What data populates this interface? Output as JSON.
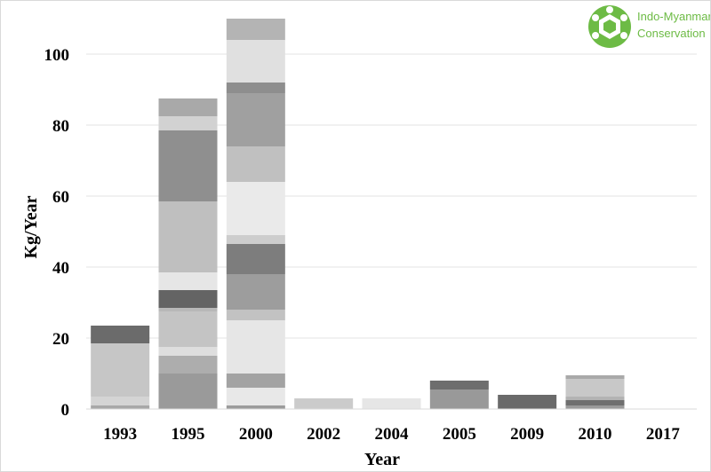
{
  "chart_data": {
    "type": "bar",
    "stacked": true,
    "xlabel": "Year",
    "ylabel": "Kg/Year",
    "ylim": [
      0,
      110
    ],
    "yticks": [
      0,
      20,
      40,
      60,
      80,
      100
    ],
    "grid": "horizontal",
    "legend": "none",
    "categories": [
      "1993",
      "1995",
      "2000",
      "2002",
      "2004",
      "2005",
      "2009",
      "2010",
      "2017"
    ],
    "stacks": [
      {
        "year": "1993",
        "segments": [
          {
            "value": 1,
            "color": "#a8a8a8"
          },
          {
            "value": 2.5,
            "color": "#d4d4d4"
          },
          {
            "value": 15,
            "color": "#c6c6c6"
          },
          {
            "value": 5,
            "color": "#6b6b6b"
          }
        ]
      },
      {
        "year": "1995",
        "segments": [
          {
            "value": 10,
            "color": "#9a9a9a"
          },
          {
            "value": 5,
            "color": "#adadad"
          },
          {
            "value": 2.5,
            "color": "#dedede"
          },
          {
            "value": 10,
            "color": "#c4c4c4"
          },
          {
            "value": 1,
            "color": "#b8b8b8"
          },
          {
            "value": 5,
            "color": "#646464"
          },
          {
            "value": 5,
            "color": "#e6e6e6"
          },
          {
            "value": 20,
            "color": "#bfbfbf"
          },
          {
            "value": 20,
            "color": "#8f8f8f"
          },
          {
            "value": 4,
            "color": "#d2d2d2"
          },
          {
            "value": 5,
            "color": "#a9a9a9"
          }
        ]
      },
      {
        "year": "2000",
        "segments": [
          {
            "value": 1,
            "color": "#9b9b9b"
          },
          {
            "value": 5,
            "color": "#e8e8e8"
          },
          {
            "value": 4,
            "color": "#a3a3a3"
          },
          {
            "value": 15,
            "color": "#e6e6e6"
          },
          {
            "value": 3,
            "color": "#c2c2c2"
          },
          {
            "value": 10,
            "color": "#9d9d9d"
          },
          {
            "value": 8.5,
            "color": "#7d7d7d"
          },
          {
            "value": 2.5,
            "color": "#cdcdcd"
          },
          {
            "value": 15,
            "color": "#eaeaea"
          },
          {
            "value": 10,
            "color": "#c0c0c0"
          },
          {
            "value": 15,
            "color": "#a0a0a0"
          },
          {
            "value": 3,
            "color": "#8e8e8e"
          },
          {
            "value": 12,
            "color": "#e0e0e0"
          },
          {
            "value": 6,
            "color": "#b4b4b4"
          }
        ]
      },
      {
        "year": "2002",
        "segments": [
          {
            "value": 3,
            "color": "#cbcbcb"
          }
        ]
      },
      {
        "year": "2004",
        "segments": [
          {
            "value": 3,
            "color": "#e6e6e6"
          }
        ]
      },
      {
        "year": "2005",
        "segments": [
          {
            "value": 5.5,
            "color": "#999999"
          },
          {
            "value": 2.5,
            "color": "#6e6e6e"
          }
        ]
      },
      {
        "year": "2009",
        "segments": [
          {
            "value": 4,
            "color": "#6a6a6a"
          }
        ]
      },
      {
        "year": "2010",
        "segments": [
          {
            "value": 1,
            "color": "#9a9a9a"
          },
          {
            "value": 1.5,
            "color": "#6f6f6f"
          },
          {
            "value": 1,
            "color": "#b3b3b3"
          },
          {
            "value": 5,
            "color": "#c8c8c8"
          },
          {
            "value": 1,
            "color": "#a9a9a9"
          }
        ]
      },
      {
        "year": "2017",
        "segments": []
      }
    ]
  },
  "logo": {
    "line1": "Indo-Myanmar",
    "line2": "Conservation",
    "color": "#6dbb45"
  }
}
